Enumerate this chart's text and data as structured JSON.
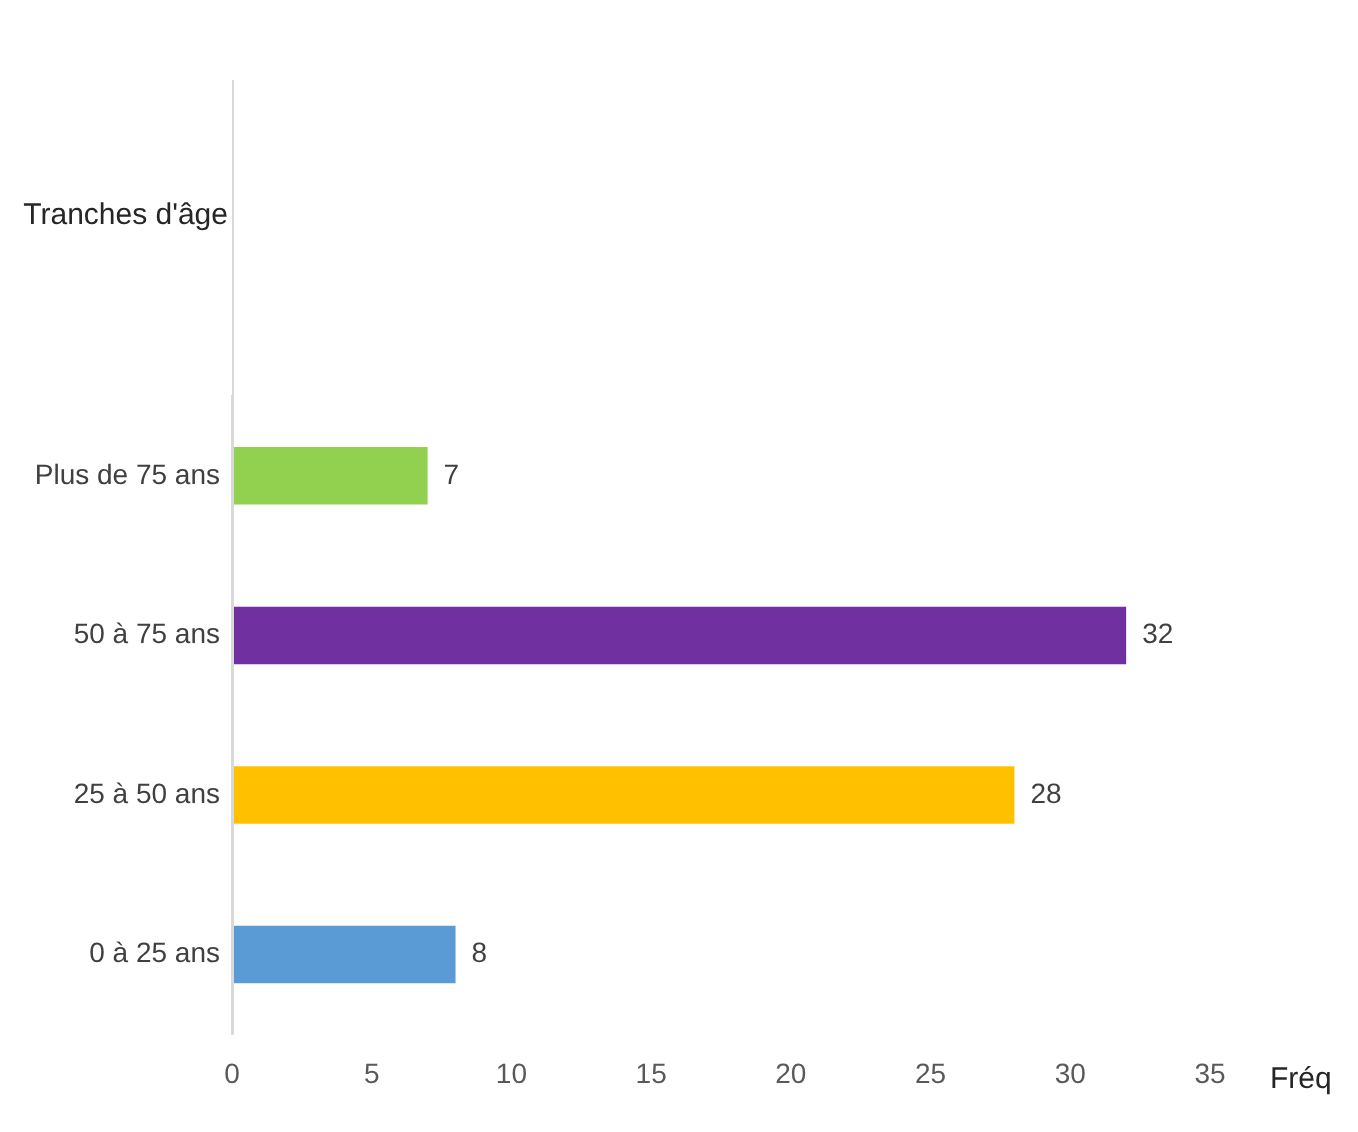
{
  "chart_data": {
    "type": "bar",
    "orientation": "horizontal",
    "annotations": [
      "Tranches d'âge"
    ],
    "xlabel": "Fréq",
    "categories": [
      "Plus de 75 ans",
      "50 à 75 ans",
      "25 à 50 ans",
      "0 à 25 ans"
    ],
    "values": [
      7,
      32,
      28,
      8
    ],
    "colors": [
      "#92d050",
      "#7030a0",
      "#ffc000",
      "#5b9bd5"
    ],
    "xlim": [
      0,
      35
    ],
    "xticks": [
      0,
      5,
      10,
      15,
      20,
      25,
      30,
      35
    ],
    "data_labels": true,
    "grid": false,
    "legend": false
  }
}
